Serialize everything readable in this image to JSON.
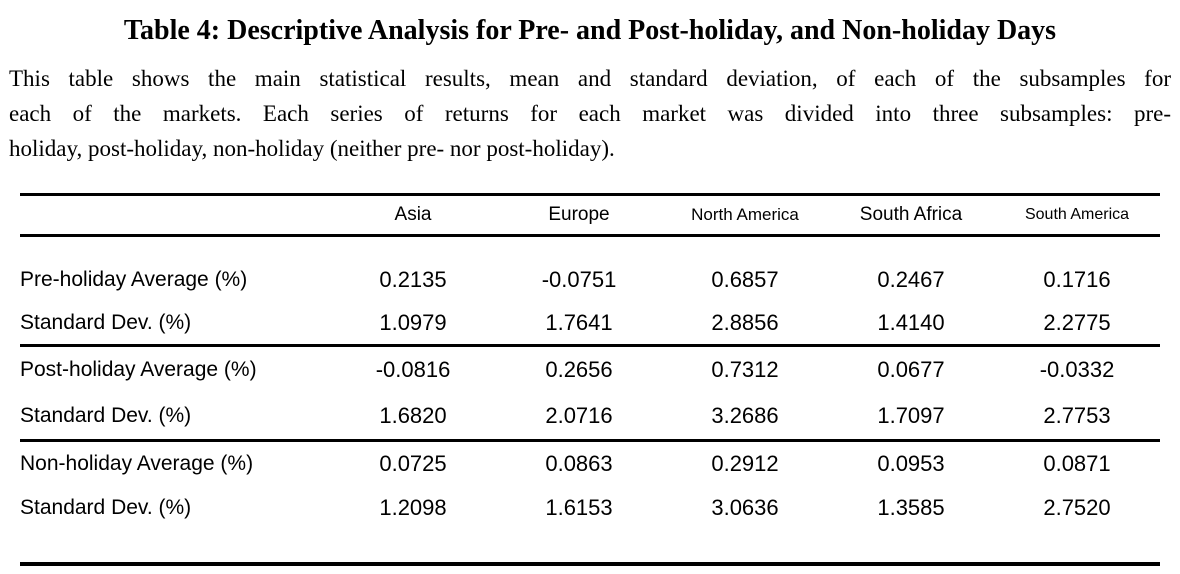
{
  "page": {
    "title": "Table 4: Descriptive Analysis for Pre- and Post-holiday, and Non-holiday Days",
    "description_lines": [
      "This table shows the main statistical results, mean and standard deviation, of each of the subsamples for",
      "each of the markets. Each series of returns for each market was divided into three subsamples: pre-",
      "holiday, post-holiday, non-holiday (neither pre- nor post-holiday)."
    ]
  },
  "table": {
    "headers": [
      "Asia",
      "Europe",
      "North America",
      "South Africa",
      "South America"
    ],
    "rows": [
      {
        "label": "Pre-holiday Average (%)",
        "values": [
          "0.2135",
          "-0.0751",
          "0.6857",
          "0.2467",
          "0.1716"
        ]
      },
      {
        "label": "Standard Dev. (%)",
        "values": [
          "1.0979",
          "1.7641",
          "2.8856",
          "1.4140",
          "2.2775"
        ]
      },
      {
        "label": "Post-holiday Average (%)",
        "values": [
          "-0.0816",
          "0.2656",
          "0.7312",
          "0.0677",
          "-0.0332"
        ]
      },
      {
        "label": "Standard Dev. (%)",
        "values": [
          "1.6820",
          "2.0716",
          "3.2686",
          "1.7097",
          "2.7753"
        ]
      },
      {
        "label": "Non-holiday Average (%)",
        "values": [
          "0.0725",
          "0.0863",
          "0.2912",
          "0.0953",
          "0.0871"
        ]
      },
      {
        "label": "Standard Dev. (%)",
        "values": [
          "1.2098",
          "1.6153",
          "3.0636",
          "1.3585",
          "2.7520"
        ]
      }
    ]
  },
  "colors": {
    "text": "#000000",
    "background": "#ffffff",
    "rule": "#000000"
  }
}
